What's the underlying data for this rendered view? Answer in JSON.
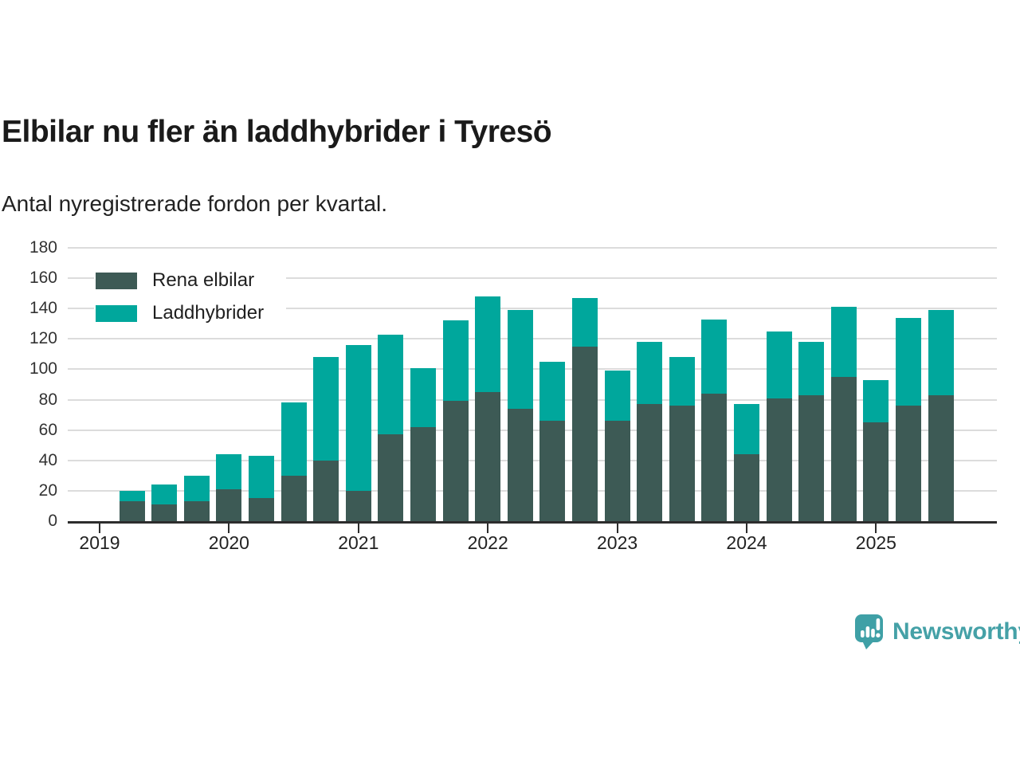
{
  "header": {
    "title": "Elbilar nu fler än laddhybrider i Tyresö",
    "subtitle": "Antal nyregistrerade fordon per kvartal."
  },
  "legend": [
    {
      "label": "Rena elbilar",
      "color": "#3d5a55"
    },
    {
      "label": "Laddhybrider",
      "color": "#00a79c"
    }
  ],
  "brand": {
    "name": "Newsworthy",
    "color": "#45a1a7"
  },
  "colors": {
    "grid": "#dcdcdc",
    "axis": "#2d2d2d",
    "title": "#1a1a1a",
    "tick_text": "#333333"
  },
  "chart_data": {
    "type": "bar",
    "stacked": true,
    "title": "Elbilar nu fler än laddhybrider i Tyresö",
    "subtitle": "Antal nyregistrerade fordon per kvartal.",
    "xlabel": "",
    "ylabel": "",
    "ylim": [
      0,
      180
    ],
    "yticks": [
      0,
      20,
      40,
      60,
      80,
      100,
      120,
      140,
      160,
      180
    ],
    "grid": true,
    "legend_position": "top-left",
    "xticks": [
      "2019",
      "2020",
      "2021",
      "2022",
      "2023",
      "2024",
      "2025"
    ],
    "categories": [
      "2019 Q2",
      "2019 Q3",
      "2019 Q4",
      "2020 Q1",
      "2020 Q2",
      "2020 Q3",
      "2020 Q4",
      "2021 Q1",
      "2021 Q2",
      "2021 Q3",
      "2021 Q4",
      "2022 Q1",
      "2022 Q2",
      "2022 Q3",
      "2022 Q4",
      "2023 Q1",
      "2023 Q2",
      "2023 Q3",
      "2023 Q4",
      "2024 Q1",
      "2024 Q2",
      "2024 Q3",
      "2024 Q4",
      "2025 Q1",
      "2025 Q2",
      "2025 Q3"
    ],
    "series": [
      {
        "name": "Rena elbilar",
        "color": "#3d5a55",
        "values": [
          13,
          11,
          13,
          21,
          15,
          30,
          40,
          20,
          57,
          62,
          79,
          85,
          74,
          66,
          115,
          66,
          77,
          76,
          84,
          44,
          81,
          83,
          95,
          65,
          76,
          83
        ]
      },
      {
        "name": "Laddhybrider",
        "color": "#00a79c",
        "values": [
          7,
          13,
          17,
          23,
          28,
          48,
          68,
          96,
          66,
          39,
          53,
          63,
          65,
          39,
          32,
          33,
          41,
          32,
          49,
          33,
          44,
          35,
          46,
          28,
          58,
          56
        ]
      }
    ]
  }
}
